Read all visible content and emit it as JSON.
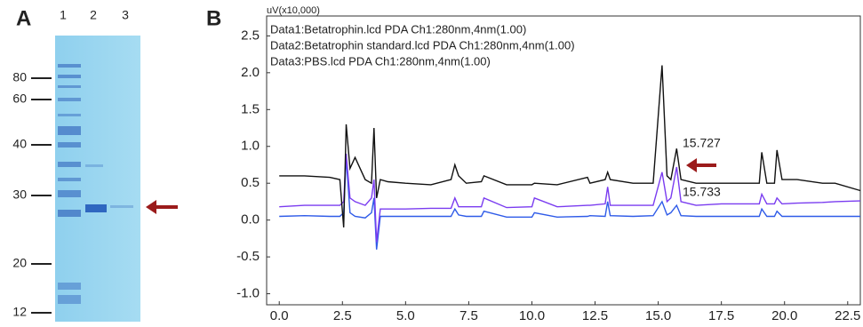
{
  "panel_a": {
    "label": "A",
    "lanes": [
      "1",
      "2",
      "3"
    ],
    "markers": [
      80,
      60,
      40,
      30,
      20,
      12
    ]
  },
  "chart_data": {
    "type": "line",
    "panel_label": "B",
    "y_label": "uV(x10,000)",
    "annotations": [
      "15.727",
      "15.733"
    ],
    "x": [
      0,
      1,
      2,
      2.4,
      2.55,
      2.65,
      2.8,
      3.0,
      3.4,
      3.65,
      3.75,
      3.85,
      4.0,
      4.3,
      5,
      6,
      6.8,
      6.95,
      7.1,
      7.4,
      8.0,
      8.1,
      9,
      10,
      10.1,
      11,
      12.2,
      12.3,
      12.9,
      13.0,
      13.1,
      14,
      14.8,
      15.15,
      15.35,
      15.5,
      15.73,
      15.9,
      16.5,
      17.5,
      18.5,
      19.0,
      19.1,
      19.3,
      19.6,
      19.7,
      19.9,
      20.5,
      21.5,
      22,
      23
    ],
    "series": [
      {
        "name": "Data1:Betatrophin.lcd PDA Ch1:280nm,4nm(1.00)",
        "color": "#111111",
        "values": [
          0.6,
          0.6,
          0.58,
          0.55,
          -0.1,
          1.3,
          0.7,
          0.85,
          0.55,
          0.5,
          1.25,
          0.3,
          0.55,
          0.52,
          0.5,
          0.48,
          0.55,
          0.75,
          0.6,
          0.5,
          0.52,
          0.6,
          0.48,
          0.48,
          0.5,
          0.48,
          0.58,
          0.5,
          0.55,
          0.65,
          0.55,
          0.5,
          0.5,
          2.1,
          0.6,
          0.55,
          0.97,
          0.55,
          0.5,
          0.5,
          0.5,
          0.5,
          0.92,
          0.5,
          0.5,
          0.95,
          0.55,
          0.55,
          0.5,
          0.5,
          0.4
        ]
      },
      {
        "name": "Data2:Betatrophin standard.lcd PDA Ch1:280nm,4nm(1.00)",
        "color": "#7a3cf0",
        "values": [
          0.18,
          0.2,
          0.2,
          0.2,
          0.25,
          0.9,
          0.3,
          0.25,
          0.2,
          0.3,
          0.55,
          -0.3,
          0.15,
          0.15,
          0.15,
          0.16,
          0.16,
          0.3,
          0.18,
          0.18,
          0.18,
          0.3,
          0.17,
          0.18,
          0.3,
          0.18,
          0.2,
          0.2,
          0.22,
          0.45,
          0.2,
          0.2,
          0.2,
          0.65,
          0.25,
          0.3,
          0.72,
          0.25,
          0.2,
          0.22,
          0.22,
          0.22,
          0.35,
          0.22,
          0.22,
          0.3,
          0.22,
          0.23,
          0.24,
          0.25,
          0.26
        ]
      },
      {
        "name": "Data3:PBS.lcd PDA Ch1:280nm,4nm(1.00)",
        "color": "#2f5be8",
        "values": [
          0.05,
          0.06,
          0.05,
          0.05,
          0.1,
          0.85,
          0.1,
          0.05,
          0.03,
          0.1,
          0.3,
          -0.4,
          0.05,
          0.05,
          0.05,
          0.05,
          0.05,
          0.15,
          0.07,
          0.05,
          0.05,
          0.12,
          0.04,
          0.04,
          0.1,
          0.04,
          0.05,
          0.06,
          0.05,
          0.25,
          0.06,
          0.05,
          0.06,
          0.25,
          0.07,
          0.1,
          0.2,
          0.06,
          0.05,
          0.05,
          0.05,
          0.05,
          0.15,
          0.05,
          0.05,
          0.12,
          0.05,
          0.05,
          0.05,
          0.05,
          0.05
        ]
      }
    ],
    "xlim": [
      -0.5,
      23
    ],
    "ylim": [
      -1.15,
      2.77
    ],
    "xticks": [
      {
        "value": 0,
        "label": "0.0"
      },
      {
        "value": 2.5,
        "label": "2.5"
      },
      {
        "value": 5,
        "label": "5.0"
      },
      {
        "value": 7.5,
        "label": "7.5"
      },
      {
        "value": 10,
        "label": "10.0"
      },
      {
        "value": 12.5,
        "label": "12.5"
      },
      {
        "value": 15,
        "label": "15.0"
      },
      {
        "value": 17.5,
        "label": "17.5"
      },
      {
        "value": 20,
        "label": "20.0"
      },
      {
        "value": 22.5,
        "label": "22.5"
      }
    ],
    "yticks": [
      {
        "value": -1,
        "label": "-1.0"
      },
      -0.5,
      {
        "value": 0,
        "label": "0.0"
      },
      0.5,
      {
        "value": 1,
        "label": "1.0"
      },
      1.5,
      {
        "value": 2,
        "label": "2.0"
      },
      2.5
    ]
  }
}
